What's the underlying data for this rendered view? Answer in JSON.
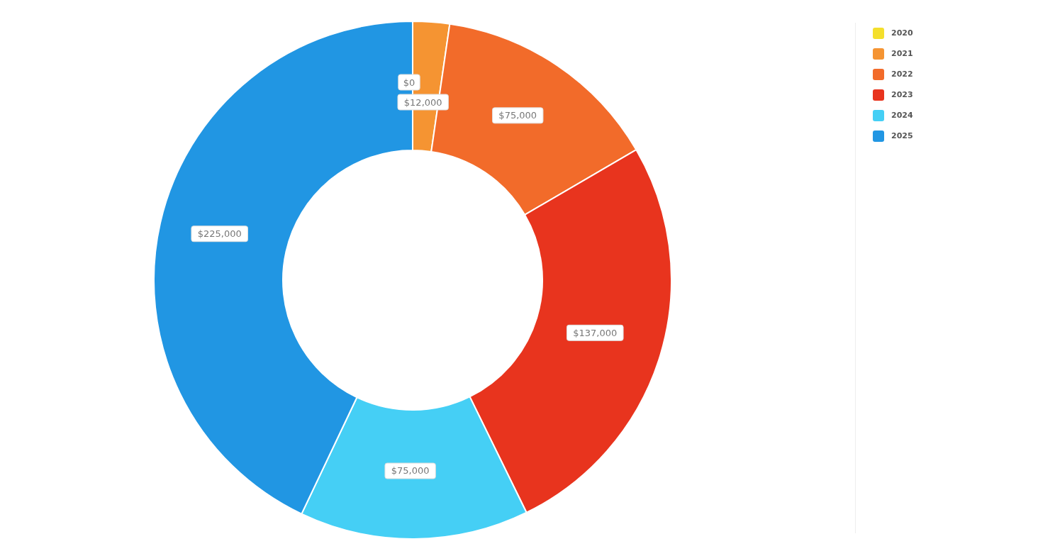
{
  "chart_data": {
    "type": "donut",
    "categories": [
      "2020",
      "2021",
      "2022",
      "2023",
      "2024",
      "2025"
    ],
    "values": [
      0,
      12000,
      75000,
      137000,
      75000,
      225000
    ],
    "colors": [
      "#f4df2c",
      "#f59432",
      "#f26b2a",
      "#e8341e",
      "#45cff5",
      "#2196e3"
    ],
    "value_labels": [
      "$0",
      "$12,000",
      "$75,000",
      "$137,000",
      "$75,000",
      "$225,000"
    ],
    "legend": "top right"
  }
}
